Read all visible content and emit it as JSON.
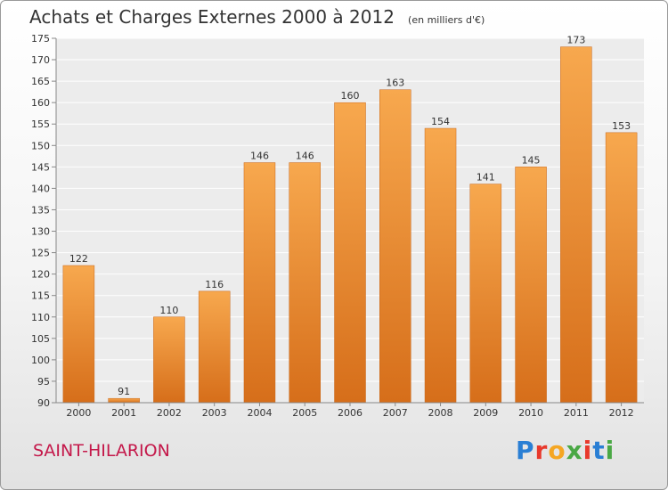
{
  "header": {
    "title": "Achats et Charges Externes 2000 à 2012",
    "subtitle": "(en milliers d'€)"
  },
  "footer": {
    "commune": "SAINT-HILARION",
    "logo_text": "Proxiti"
  },
  "colors": {
    "bar_light": "#f7a84e",
    "bar_dark": "#d66e1a",
    "commune": "#c4184a"
  },
  "chart_data": {
    "type": "bar",
    "categories": [
      "2000",
      "2001",
      "2002",
      "2003",
      "2004",
      "2005",
      "2006",
      "2007",
      "2008",
      "2009",
      "2010",
      "2011",
      "2012"
    ],
    "values": [
      122,
      91,
      110,
      116,
      146,
      146,
      160,
      163,
      154,
      141,
      145,
      173,
      153
    ],
    "title": "Achats et Charges Externes 2000 à 2012",
    "subtitle": "(en milliers d'€)",
    "ylim": [
      90,
      175
    ],
    "yticks": [
      90,
      95,
      100,
      105,
      110,
      115,
      120,
      125,
      130,
      135,
      140,
      145,
      150,
      155,
      160,
      165,
      170,
      175
    ],
    "grid": true
  }
}
